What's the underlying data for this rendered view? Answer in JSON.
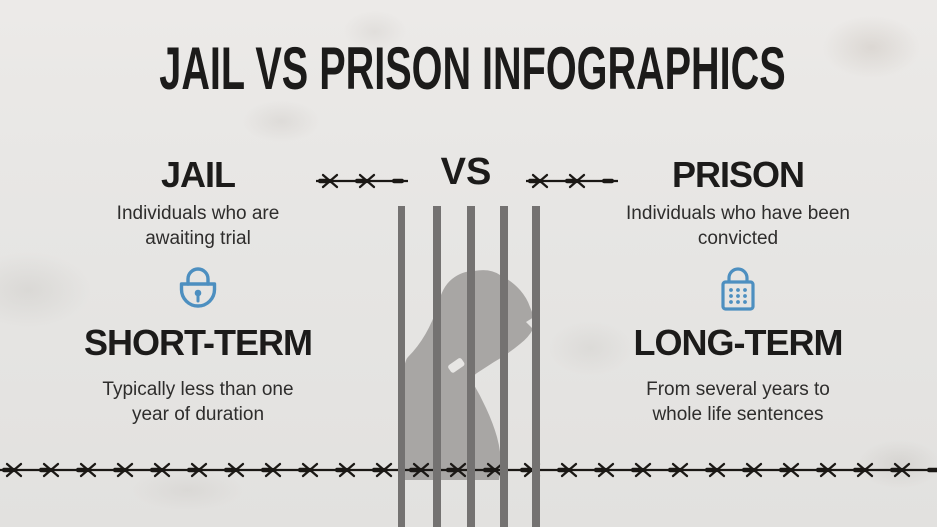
{
  "title": "JAIL VS PRISON INFOGRAPHICS",
  "versus_label": "VS",
  "columns": {
    "left": {
      "heading": "JAIL",
      "description": "Individuals who are awaiting trial",
      "icon": "padlock-keyhole-icon",
      "term_heading": "SHORT-TERM",
      "term_description": "Typically less than one year of duration"
    },
    "right": {
      "heading": "PRISON",
      "description": "Individuals who have been convicted",
      "icon": "padlock-keypad-icon",
      "term_heading": "LONG-TERM",
      "term_description": "From several years to whole life sentences"
    }
  },
  "decorations": {
    "center_art": "prisoner-silhouette-behind-bars",
    "divider_style": "barbed-wire",
    "bar_count": 5
  },
  "colors": {
    "background": "#e8e7e5",
    "text": "#1c1b1a",
    "text_secondary": "#2e2d2c",
    "accent_blue": "#4d8fc0",
    "bars_gray": "#747271",
    "silhouette_gray": "#a8a6a4",
    "wire_black": "#1b1815"
  }
}
